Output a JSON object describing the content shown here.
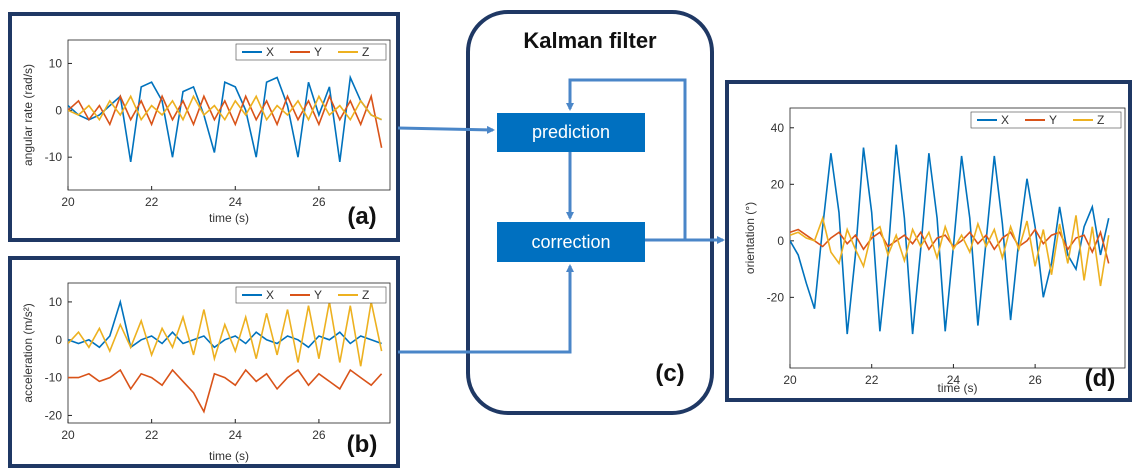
{
  "chart_data": [
    {
      "type": "line",
      "panel_label": "(a)",
      "y_label": "angular rate (rad/s)",
      "x_label": "time (s)",
      "legend": "upper right",
      "xlim": [
        20,
        27.7
      ],
      "ylim": [
        -17,
        15
      ],
      "xticks": [
        20,
        22,
        24,
        26
      ],
      "yticks": [
        -10,
        0,
        10
      ],
      "x": [
        20,
        20.25,
        20.5,
        20.75,
        21,
        21.25,
        21.5,
        21.75,
        22,
        22.25,
        22.5,
        22.75,
        23,
        23.25,
        23.5,
        23.75,
        24,
        24.25,
        24.5,
        24.75,
        25,
        25.25,
        25.5,
        25.75,
        26,
        26.25,
        26.5,
        26.75,
        27,
        27.25,
        27.5
      ],
      "series": [
        {
          "name": "X",
          "color": "#0072bd",
          "values": [
            1,
            -1,
            -2,
            -1,
            1,
            3,
            -11,
            5,
            6,
            2,
            -10,
            4,
            5,
            -1,
            -9,
            6,
            5,
            0,
            -10,
            6,
            7,
            1,
            -10,
            6,
            -1,
            5,
            -11,
            7,
            2,
            -1,
            -2
          ]
        },
        {
          "name": "Y",
          "color": "#d95319",
          "values": [
            0,
            2,
            -2,
            1,
            -3,
            3,
            -2,
            2,
            -3,
            3,
            -2,
            2,
            -3,
            3,
            -2,
            2,
            -3,
            3,
            -2,
            2,
            -3,
            3,
            -2,
            2,
            -3,
            3,
            -2,
            2,
            -3,
            3,
            -8
          ]
        },
        {
          "name": "Z",
          "color": "#edb120",
          "values": [
            0,
            -1,
            1,
            -2,
            2,
            -1,
            3,
            -2,
            1,
            -1,
            2,
            -2,
            3,
            -1,
            1,
            -2,
            2,
            -1,
            3,
            -2,
            1,
            -1,
            2,
            -2,
            3,
            -1,
            1,
            -2,
            2,
            -1,
            -2
          ]
        }
      ]
    },
    {
      "type": "line",
      "panel_label": "(b)",
      "y_label": "acceleration (m/s²)",
      "x_label": "time (s)",
      "legend": "upper right",
      "xlim": [
        20,
        27.7
      ],
      "ylim": [
        -22,
        15
      ],
      "xticks": [
        20,
        22,
        24,
        26
      ],
      "yticks": [
        -20,
        -10,
        0,
        10
      ],
      "x": [
        20,
        20.25,
        20.5,
        20.75,
        21,
        21.25,
        21.5,
        21.75,
        22,
        22.25,
        22.5,
        22.75,
        23,
        23.25,
        23.5,
        23.75,
        24,
        24.25,
        24.5,
        24.75,
        25,
        25.25,
        25.5,
        25.75,
        26,
        26.25,
        26.5,
        26.75,
        27,
        27.25,
        27.5
      ],
      "series": [
        {
          "name": "X",
          "color": "#0072bd",
          "values": [
            0,
            -1,
            0,
            -2,
            1,
            10,
            -2,
            0,
            1,
            -1,
            2,
            -1,
            0,
            1,
            -2,
            0,
            1,
            -1,
            2,
            0,
            -1,
            1,
            0,
            -2,
            1,
            0,
            2,
            -1,
            1,
            0,
            -1
          ]
        },
        {
          "name": "Y",
          "color": "#d95319",
          "values": [
            -10,
            -10,
            -9,
            -11,
            -10,
            -8,
            -13,
            -9,
            -10,
            -12,
            -8,
            -11,
            -14,
            -19,
            -9,
            -10,
            -12,
            -8,
            -11,
            -9,
            -13,
            -10,
            -8,
            -12,
            -9,
            -11,
            -13,
            -8,
            -10,
            -12,
            -9
          ]
        },
        {
          "name": "Z",
          "color": "#edb120",
          "values": [
            -1,
            2,
            -2,
            3,
            -3,
            4,
            -2,
            5,
            -4,
            3,
            -2,
            6,
            -4,
            8,
            -5,
            4,
            -3,
            6,
            -5,
            7,
            -4,
            8,
            -6,
            9,
            -5,
            10,
            -6,
            9,
            -7,
            10,
            -3
          ]
        }
      ]
    },
    {
      "type": "line",
      "panel_label": "(d)",
      "y_label": "orientation (°)",
      "x_label": "time (s)",
      "legend": "upper right",
      "xlim": [
        20,
        28.2
      ],
      "ylim": [
        -45,
        47
      ],
      "xticks": [
        20,
        22,
        24,
        26
      ],
      "yticks": [
        -20,
        0,
        20,
        40
      ],
      "x": [
        20,
        20.2,
        20.4,
        20.6,
        20.8,
        21,
        21.2,
        21.4,
        21.6,
        21.8,
        22,
        22.2,
        22.4,
        22.6,
        22.8,
        23,
        23.2,
        23.4,
        23.6,
        23.8,
        24,
        24.2,
        24.4,
        24.6,
        24.8,
        25,
        25.2,
        25.4,
        25.6,
        25.8,
        26,
        26.2,
        26.4,
        26.6,
        26.8,
        27,
        27.2,
        27.4,
        27.6,
        27.8
      ],
      "series": [
        {
          "name": "X",
          "color": "#0072bd",
          "values": [
            0,
            -5,
            -15,
            -24,
            5,
            31,
            10,
            -33,
            -5,
            33,
            10,
            -32,
            -5,
            34,
            8,
            -33,
            -3,
            31,
            8,
            -32,
            -2,
            30,
            8,
            -30,
            0,
            30,
            6,
            -28,
            0,
            22,
            5,
            -20,
            -8,
            12,
            -5,
            -10,
            5,
            12,
            -5,
            8
          ]
        },
        {
          "name": "Y",
          "color": "#d95319",
          "values": [
            3,
            4,
            2,
            0,
            -2,
            1,
            3,
            -1,
            2,
            -3,
            1,
            3,
            -2,
            0,
            2,
            -1,
            3,
            -3,
            1,
            2,
            -2,
            0,
            3,
            -1,
            2,
            -3,
            1,
            3,
            -2,
            0,
            4,
            -1,
            2,
            3,
            -3,
            1,
            2,
            -4,
            3,
            -8
          ]
        },
        {
          "name": "Z",
          "color": "#edb120",
          "values": [
            2,
            3,
            1,
            0,
            8,
            -4,
            -8,
            4,
            -3,
            -9,
            3,
            5,
            -5,
            2,
            -7,
            4,
            -2,
            3,
            -6,
            5,
            -3,
            2,
            -4,
            6,
            -2,
            4,
            -6,
            5,
            -3,
            7,
            -9,
            4,
            -12,
            6,
            -8,
            9,
            -14,
            5,
            -16,
            2
          ]
        }
      ]
    }
  ],
  "diagram": {
    "title": "Kalman filter",
    "nodes": [
      {
        "label": "prediction"
      },
      {
        "label": "correction"
      }
    ],
    "panel_label": "(c)"
  }
}
